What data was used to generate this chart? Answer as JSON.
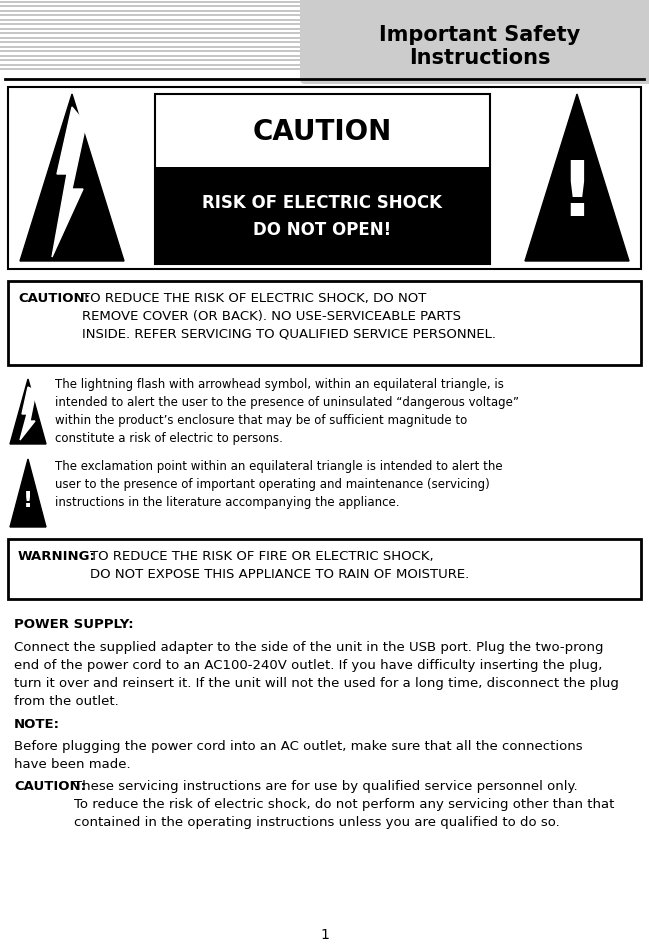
{
  "title_line1": "Important Safety",
  "title_line2": "Instructions",
  "title_bg": "#cccccc",
  "page_bg": "#ffffff",
  "header_lines": 16,
  "lightning_text": "The lightning flash with arrowhead symbol, within an equilateral triangle, is\nintended to alert the user to the presence of uninsulated “dangerous voltage”\nwithin the product’s enclosure that may be of sufficient magnitude to\nconstitute a risk of electric to persons.",
  "exclaim_text": "The exclamation point within an equilateral triangle is intended to alert the\nuser to the presence of important operating and maintenance (servicing)\ninstructions in the literature accompanying the appliance.",
  "power_title": "POWER SUPPLY:",
  "power_text": "Connect the supplied adapter to the side of the unit in the USB port. Plug the two-prong\nend of the power cord to an AC100-240V outlet. If you have difficulty inserting the plug,\nturn it over and reinsert it. If the unit will not the used for a long time, disconnect the plug\nfrom the outlet.",
  "note_title": "NOTE:",
  "note_text": "Before plugging the power cord into an AC outlet, make sure that all the connections\nhave been made.",
  "caution2_bold": "CAUTION:",
  "caution2_text": " These servicing instructions are for use by qualified service personnel only.\nTo reduce the risk of electric shock, do not perform any servicing other than that\ncontained in the operating instructions unless you are qualified to do so.",
  "page_num": "1",
  "body_fontsize": 9.5,
  "small_fontsize": 8.8,
  "icon_fontsize": 8.5
}
